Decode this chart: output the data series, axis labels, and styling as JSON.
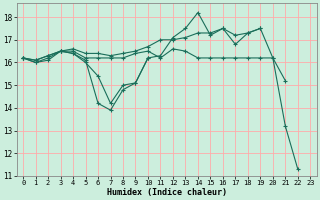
{
  "xlabel": "Humidex (Indice chaleur)",
  "bg_color": "#cceedd",
  "grid_color": "#ffaaaa",
  "line_color": "#1a6e5a",
  "xlim": [
    -0.5,
    23.5
  ],
  "ylim": [
    11,
    18.6
  ],
  "yticks": [
    11,
    12,
    13,
    14,
    15,
    16,
    17,
    18
  ],
  "xticks": [
    0,
    1,
    2,
    3,
    4,
    5,
    6,
    7,
    8,
    9,
    10,
    11,
    12,
    13,
    14,
    15,
    16,
    17,
    18,
    19,
    20,
    21,
    22,
    23
  ],
  "series": [
    [
      16.2,
      16.0,
      16.1,
      16.5,
      16.4,
      16.1,
      14.2,
      13.9,
      14.8,
      15.1,
      16.2,
      16.3,
      17.1,
      17.5,
      18.2,
      17.2,
      17.5,
      17.2,
      17.3,
      17.5,
      16.2,
      13.2,
      11.3,
      null
    ],
    [
      16.2,
      16.0,
      16.2,
      16.5,
      16.5,
      16.2,
      16.2,
      16.2,
      16.2,
      16.4,
      16.5,
      16.2,
      16.6,
      16.5,
      16.2,
      16.2,
      16.2,
      16.2,
      16.2,
      16.2,
      16.2,
      15.2,
      null,
      null
    ],
    [
      16.2,
      16.1,
      16.3,
      16.5,
      16.6,
      16.4,
      16.4,
      16.3,
      16.4,
      16.5,
      16.7,
      17.0,
      17.0,
      17.1,
      17.3,
      17.3,
      17.5,
      16.8,
      17.3,
      17.5,
      null,
      null,
      null,
      null
    ],
    [
      16.2,
      16.1,
      16.3,
      16.5,
      16.4,
      16.0,
      15.4,
      14.2,
      15.0,
      15.1,
      16.2,
      null,
      null,
      null,
      null,
      null,
      null,
      null,
      null,
      null,
      null,
      null,
      null,
      null
    ]
  ]
}
